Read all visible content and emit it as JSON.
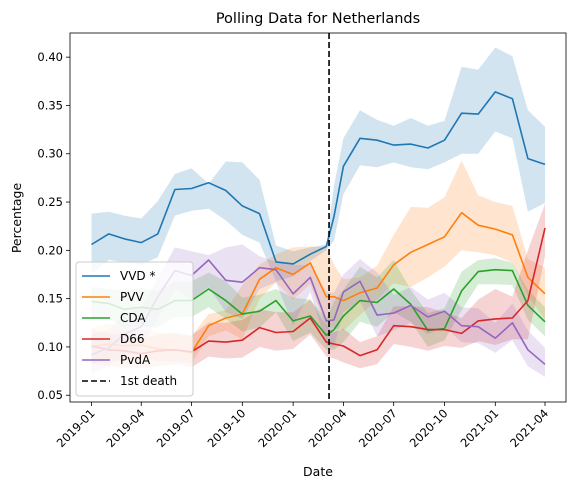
{
  "chart_data": {
    "type": "line",
    "title": "Polling Data for Netherlands",
    "xlabel": "Date",
    "ylabel": "Percentage",
    "xlim": [
      "2018-11-23",
      "2021-05-09"
    ],
    "ylim": [
      0.043,
      0.425
    ],
    "x_ticks": [
      "2019-01",
      "2019-04",
      "2019-07",
      "2019-10",
      "2020-01",
      "2020-04",
      "2020-07",
      "2020-10",
      "2021-01",
      "2021-04"
    ],
    "y_ticks": [
      0.05,
      0.1,
      0.15,
      0.2,
      0.25,
      0.3,
      0.35,
      0.4
    ],
    "y_tick_labels": [
      "0.05",
      "0.10",
      "0.15",
      "0.20",
      "0.25",
      "0.30",
      "0.35",
      "0.40"
    ],
    "legend_position": "lower-left",
    "grid": false,
    "x": [
      "2019-01-01",
      "2019-02-01",
      "2019-03-01",
      "2019-04-01",
      "2019-05-01",
      "2019-06-01",
      "2019-07-01",
      "2019-08-01",
      "2019-09-01",
      "2019-10-01",
      "2019-11-01",
      "2019-12-01",
      "2020-01-01",
      "2020-02-01",
      "2020-03-01",
      "2020-03-15",
      "2020-04-01",
      "2020-05-01",
      "2020-06-01",
      "2020-07-01",
      "2020-08-01",
      "2020-09-01",
      "2020-10-01",
      "2020-11-01",
      "2020-12-01",
      "2021-01-01",
      "2021-02-01",
      "2021-03-01",
      "2021-04-01"
    ],
    "series": [
      {
        "name": "VVD *",
        "color": "#1f77b4",
        "values": [
          0.206,
          0.217,
          0.212,
          0.208,
          0.217,
          0.263,
          0.264,
          0.27,
          0.262,
          0.246,
          0.238,
          0.188,
          0.186,
          0.196,
          0.204,
          0.235,
          0.287,
          0.316,
          0.314,
          0.309,
          0.31,
          0.306,
          0.314,
          0.342,
          0.341,
          0.364,
          0.357,
          0.295,
          0.289
        ],
        "upper": [
          0.238,
          0.24,
          0.236,
          0.233,
          0.251,
          0.279,
          0.285,
          0.269,
          0.292,
          0.291,
          0.273,
          0.205,
          0.199,
          0.203,
          0.206,
          0.267,
          0.316,
          0.345,
          0.335,
          0.329,
          0.337,
          0.329,
          0.334,
          0.39,
          0.387,
          0.41,
          0.401,
          0.345,
          0.328
        ],
        "lower": [
          0.176,
          0.19,
          0.188,
          0.185,
          0.193,
          0.236,
          0.241,
          0.243,
          0.231,
          0.216,
          0.208,
          0.168,
          0.173,
          0.189,
          0.2,
          0.21,
          0.258,
          0.288,
          0.286,
          0.291,
          0.286,
          0.284,
          0.291,
          0.3,
          0.3,
          0.323,
          0.316,
          0.24,
          0.249
        ]
      },
      {
        "name": "PVV",
        "color": "#ff7f0e",
        "values": [
          0.1,
          0.103,
          0.101,
          0.102,
          0.098,
          0.097,
          0.094,
          0.122,
          0.13,
          0.134,
          0.17,
          0.182,
          0.175,
          0.187,
          0.152,
          0.152,
          0.148,
          0.156,
          0.161,
          0.185,
          0.198,
          0.206,
          0.214,
          0.239,
          0.226,
          0.222,
          0.216,
          0.172,
          0.155
        ],
        "upper": [
          0.12,
          0.124,
          0.121,
          0.118,
          0.115,
          0.113,
          0.111,
          0.134,
          0.138,
          0.164,
          0.185,
          0.196,
          0.203,
          0.204,
          0.203,
          0.185,
          0.17,
          0.172,
          0.184,
          0.216,
          0.245,
          0.244,
          0.255,
          0.293,
          0.257,
          0.25,
          0.246,
          0.191,
          0.182
        ],
        "lower": [
          0.082,
          0.086,
          0.085,
          0.088,
          0.085,
          0.085,
          0.083,
          0.111,
          0.117,
          0.108,
          0.15,
          0.167,
          0.149,
          0.165,
          0.12,
          0.12,
          0.117,
          0.133,
          0.149,
          0.166,
          0.162,
          0.172,
          0.183,
          0.2,
          0.198,
          0.195,
          0.187,
          0.153,
          0.128
        ]
      },
      {
        "name": "CDA",
        "color": "#2ca02c",
        "values": [
          0.147,
          0.145,
          0.139,
          0.141,
          0.139,
          0.148,
          0.148,
          0.16,
          0.148,
          0.134,
          0.137,
          0.148,
          0.127,
          0.132,
          0.112,
          0.118,
          0.132,
          0.148,
          0.146,
          0.16,
          0.144,
          0.117,
          0.119,
          0.158,
          0.178,
          0.18,
          0.179,
          0.143,
          0.126
        ],
        "upper": [
          0.162,
          0.16,
          0.158,
          0.161,
          0.158,
          0.168,
          0.168,
          0.177,
          0.168,
          0.151,
          0.154,
          0.16,
          0.151,
          0.149,
          0.129,
          0.147,
          0.159,
          0.183,
          0.172,
          0.19,
          0.159,
          0.135,
          0.14,
          0.178,
          0.19,
          0.192,
          0.187,
          0.159,
          0.141
        ],
        "lower": [
          0.13,
          0.13,
          0.12,
          0.121,
          0.12,
          0.131,
          0.131,
          0.141,
          0.129,
          0.116,
          0.12,
          0.136,
          0.106,
          0.115,
          0.097,
          0.097,
          0.105,
          0.126,
          0.121,
          0.136,
          0.126,
          0.1,
          0.107,
          0.138,
          0.165,
          0.165,
          0.164,
          0.128,
          0.111
        ]
      },
      {
        "name": "D66",
        "color": "#d62728",
        "values": [
          0.101,
          0.097,
          0.096,
          0.093,
          0.096,
          0.097,
          0.095,
          0.106,
          0.105,
          0.107,
          0.12,
          0.115,
          0.116,
          0.13,
          0.105,
          0.103,
          0.101,
          0.091,
          0.097,
          0.122,
          0.121,
          0.118,
          0.118,
          0.114,
          0.127,
          0.129,
          0.13,
          0.148,
          0.223
        ],
        "upper": [
          0.119,
          0.114,
          0.112,
          0.109,
          0.113,
          0.115,
          0.112,
          0.125,
          0.125,
          0.128,
          0.139,
          0.136,
          0.136,
          0.149,
          0.122,
          0.115,
          0.119,
          0.105,
          0.111,
          0.142,
          0.142,
          0.141,
          0.136,
          0.13,
          0.149,
          0.16,
          0.152,
          0.2,
          0.248
        ],
        "lower": [
          0.083,
          0.08,
          0.079,
          0.078,
          0.08,
          0.082,
          0.079,
          0.09,
          0.088,
          0.089,
          0.1,
          0.096,
          0.098,
          0.113,
          0.09,
          0.088,
          0.084,
          0.078,
          0.082,
          0.103,
          0.1,
          0.096,
          0.101,
          0.099,
          0.106,
          0.102,
          0.108,
          0.108,
          0.194
        ]
      },
      {
        "name": "PvdA",
        "color": "#9467bd",
        "values": [
          0.092,
          0.099,
          0.113,
          0.121,
          0.152,
          0.179,
          0.174,
          0.19,
          0.169,
          0.167,
          0.182,
          0.18,
          0.155,
          0.172,
          0.127,
          0.128,
          0.157,
          0.168,
          0.133,
          0.135,
          0.143,
          0.131,
          0.137,
          0.122,
          0.121,
          0.109,
          0.125,
          0.097,
          0.082
        ],
        "upper": [
          0.113,
          0.118,
          0.134,
          0.141,
          0.171,
          0.203,
          0.199,
          0.195,
          0.203,
          0.206,
          0.194,
          0.188,
          0.185,
          0.184,
          0.157,
          0.156,
          0.175,
          0.191,
          0.177,
          0.154,
          0.162,
          0.149,
          0.156,
          0.141,
          0.14,
          0.125,
          0.145,
          0.117,
          0.099
        ],
        "lower": [
          0.072,
          0.081,
          0.092,
          0.101,
          0.129,
          0.159,
          0.149,
          0.162,
          0.136,
          0.129,
          0.16,
          0.167,
          0.122,
          0.157,
          0.102,
          0.1,
          0.136,
          0.147,
          0.111,
          0.117,
          0.125,
          0.113,
          0.121,
          0.105,
          0.104,
          0.094,
          0.107,
          0.08,
          0.069
        ]
      }
    ],
    "vline": {
      "x": "2020-03-06",
      "label": "1st death",
      "color": "#000000"
    }
  }
}
